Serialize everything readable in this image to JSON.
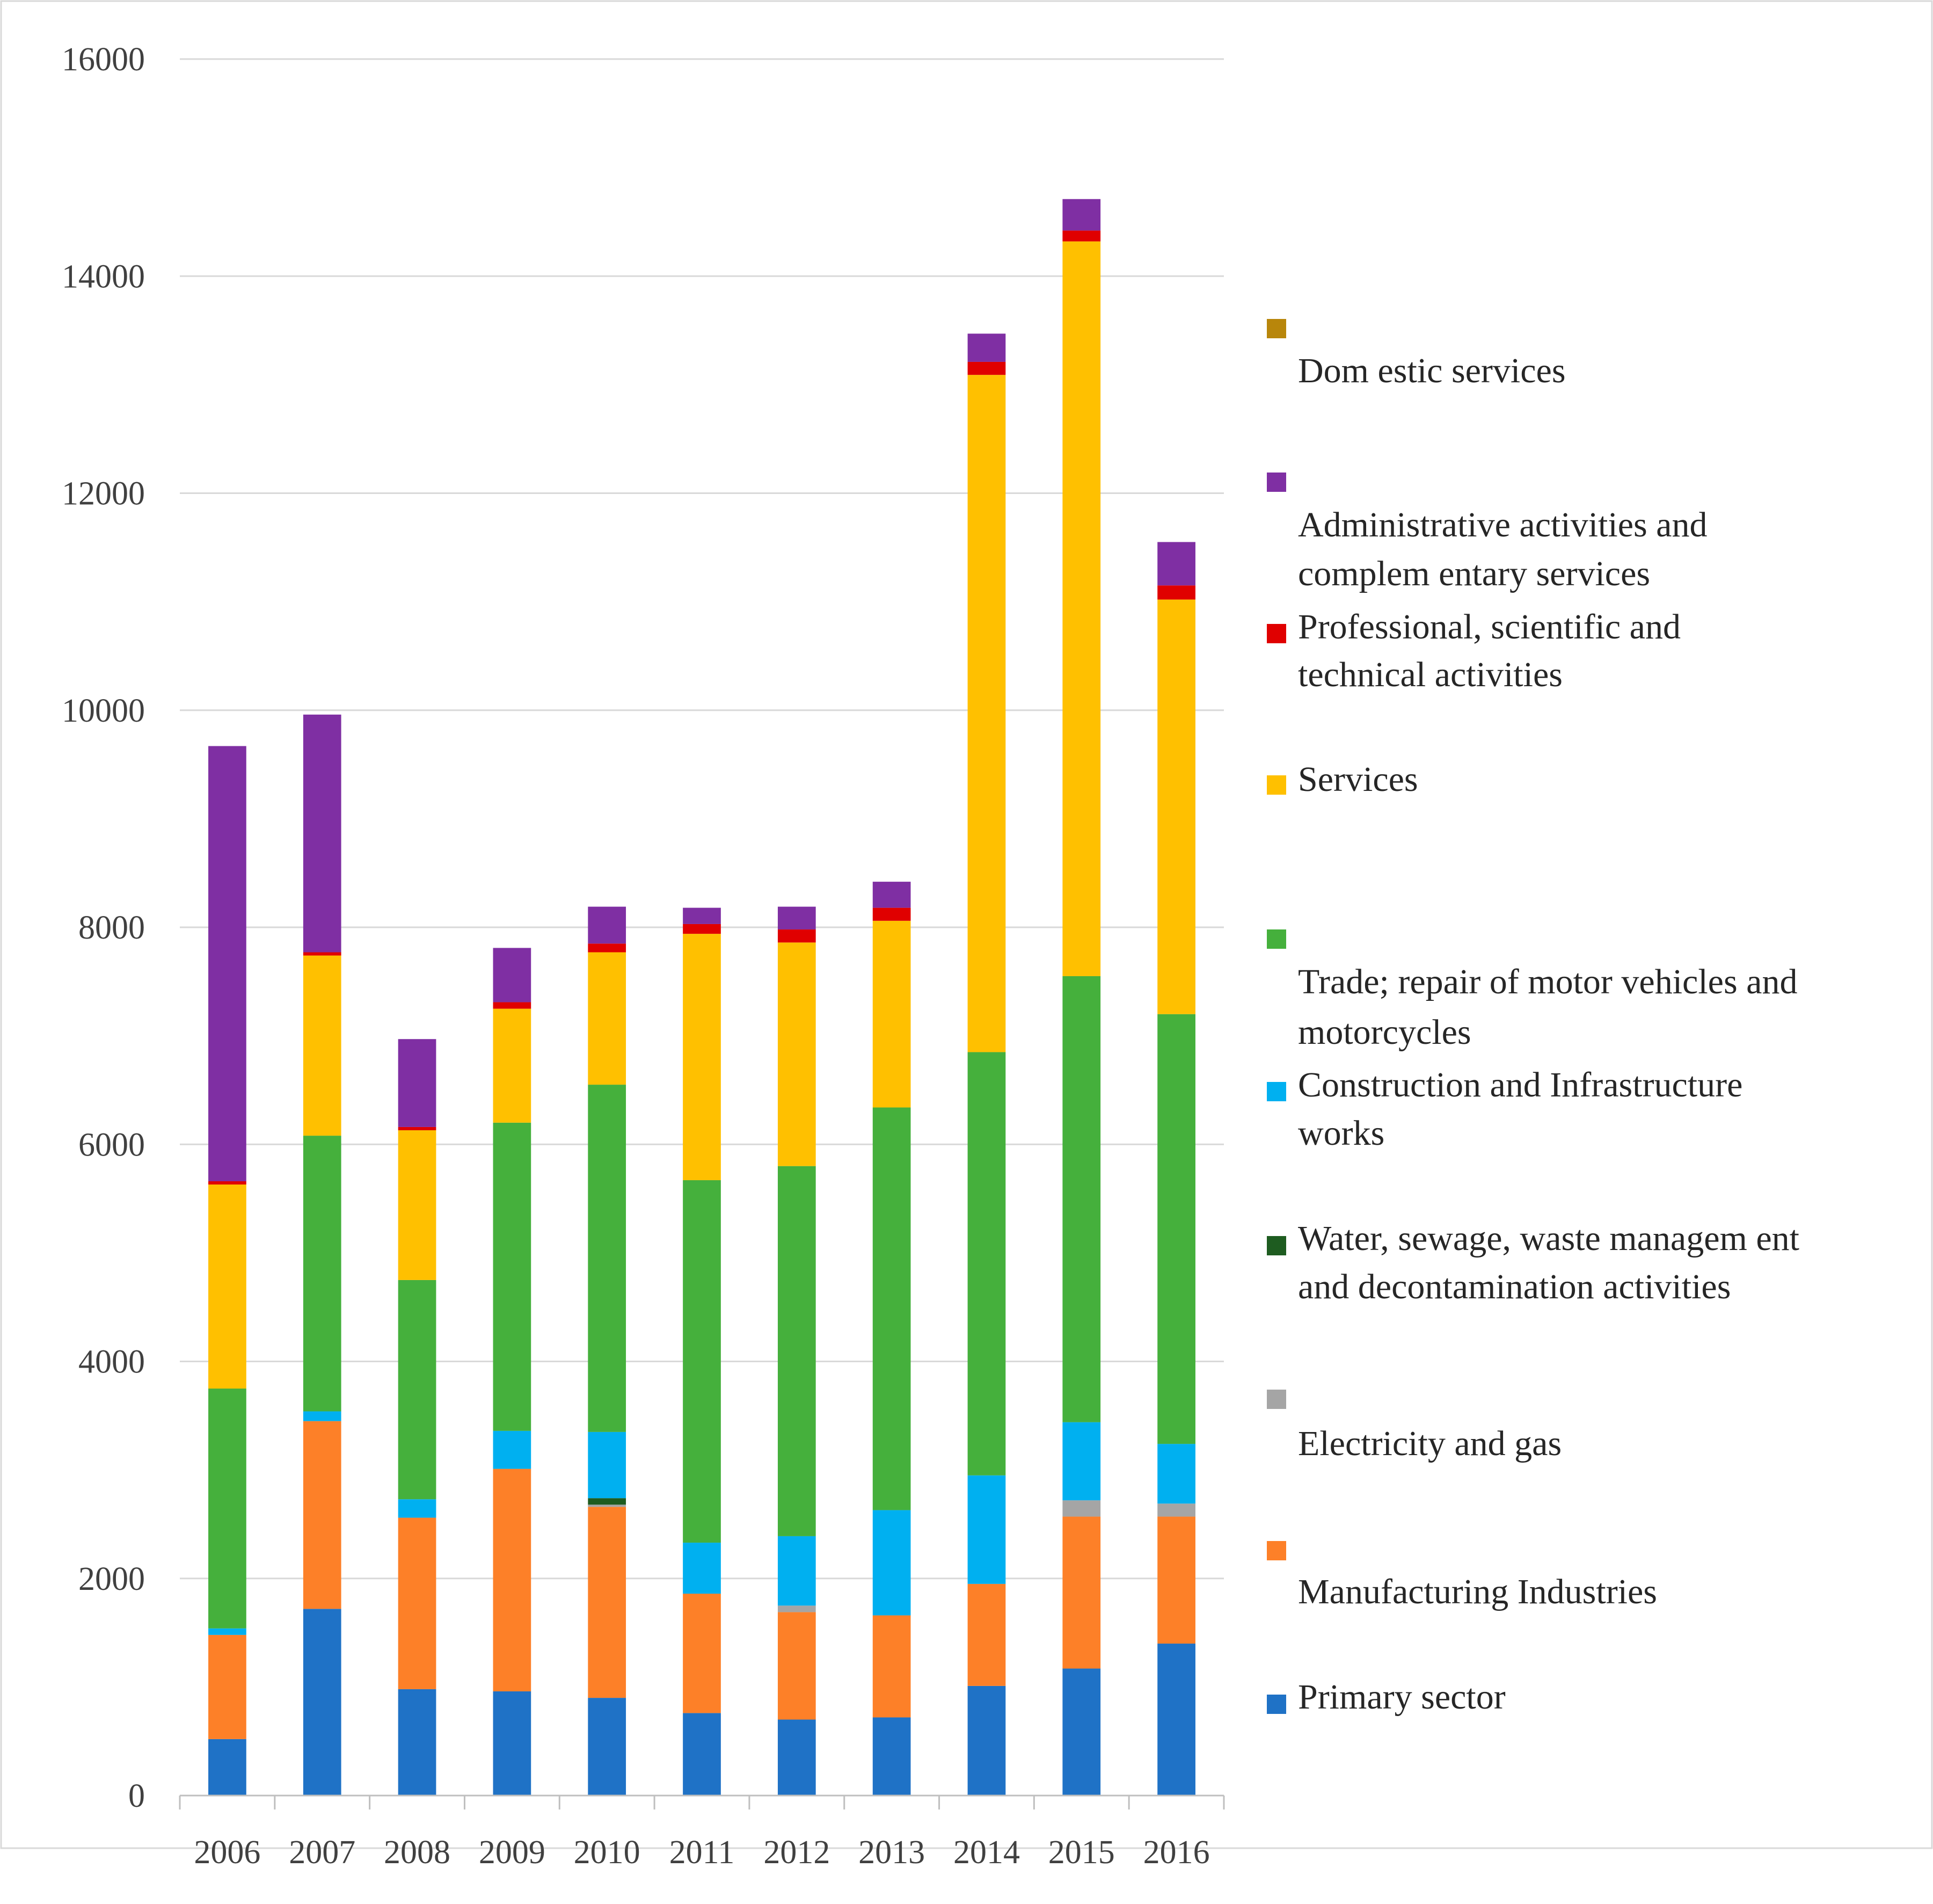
{
  "chart_data": {
    "type": "bar",
    "stacked": true,
    "title": "",
    "xlabel": "",
    "ylabel": "",
    "ylim": [
      0,
      16000
    ],
    "yticks": [
      0,
      2000,
      4000,
      6000,
      8000,
      10000,
      12000,
      14000,
      16000
    ],
    "grid": true,
    "legend_position": "right",
    "categories": [
      "2006",
      "2007",
      "2008",
      "2009",
      "2010",
      "2011",
      "2012",
      "2013",
      "2014",
      "2015",
      "2016"
    ],
    "series": [
      {
        "name": "Primary sector",
        "color": "#1f72c6",
        "values": [
          520,
          1720,
          980,
          960,
          900,
          760,
          700,
          720,
          1010,
          1170,
          1400
        ]
      },
      {
        "name": "Manufacturing Industries",
        "color": "#fd8028",
        "values": [
          960,
          1730,
          1580,
          2050,
          1760,
          1100,
          990,
          940,
          940,
          1400,
          1170
        ]
      },
      {
        "name": "Electricity and gas",
        "color": "#a5a5a5",
        "values": [
          0,
          0,
          0,
          0,
          20,
          0,
          60,
          0,
          0,
          150,
          120
        ]
      },
      {
        "name": "Water, sewage, waste managem ent and decontamination activities",
        "color": "#1e5c20",
        "values": [
          0,
          0,
          0,
          0,
          60,
          0,
          0,
          0,
          0,
          0,
          0
        ]
      },
      {
        "name": "Construction and Infrastructure works",
        "color": "#00b0f0",
        "values": [
          60,
          90,
          170,
          350,
          610,
          470,
          640,
          970,
          1000,
          720,
          550
        ]
      },
      {
        "name": "Trade; repair of motor vehicles and motorcycles",
        "color": "#45b03c",
        "values": [
          2210,
          2540,
          2020,
          2840,
          3200,
          3340,
          3410,
          3710,
          3900,
          4110,
          3960
        ]
      },
      {
        "name": "Services",
        "color": "#ffc000",
        "values": [
          1880,
          1660,
          1380,
          1050,
          1220,
          2270,
          2060,
          1720,
          6240,
          6770,
          3820
        ]
      },
      {
        "name": "Professional, scientific and technical activities",
        "color": "#e00000",
        "values": [
          30,
          30,
          30,
          60,
          80,
          90,
          120,
          120,
          120,
          100,
          130
        ]
      },
      {
        "name": "Administrative activities and complem entary services",
        "color": "#7f2fa3",
        "values": [
          4010,
          2190,
          810,
          500,
          340,
          150,
          210,
          240,
          260,
          290,
          400
        ]
      },
      {
        "name": "Dom estic services",
        "color": "#b8860b",
        "values": [
          0,
          0,
          0,
          0,
          0,
          0,
          0,
          0,
          0,
          0,
          0
        ]
      }
    ]
  },
  "legend": {
    "items": [
      {
        "lines": [
          "Dom estic services"
        ]
      },
      {
        "lines": [
          "Administrative activities and",
          "complem entary services"
        ]
      },
      {
        "lines": [
          "Professional, scientific and",
          "technical activities"
        ]
      },
      {
        "lines": [
          "Services"
        ]
      },
      {
        "lines": [
          "Trade; repair of motor vehicles and",
          "motorcycles"
        ]
      },
      {
        "lines": [
          "Construction and Infrastructure",
          "works"
        ]
      },
      {
        "lines": [
          "Water, sewage, waste managem ent",
          "and decontamination activities"
        ]
      },
      {
        "lines": [
          "Electricity and gas"
        ]
      },
      {
        "lines": [
          "Manufacturing Industries"
        ]
      },
      {
        "lines": [
          "Primary sector"
        ]
      }
    ]
  }
}
